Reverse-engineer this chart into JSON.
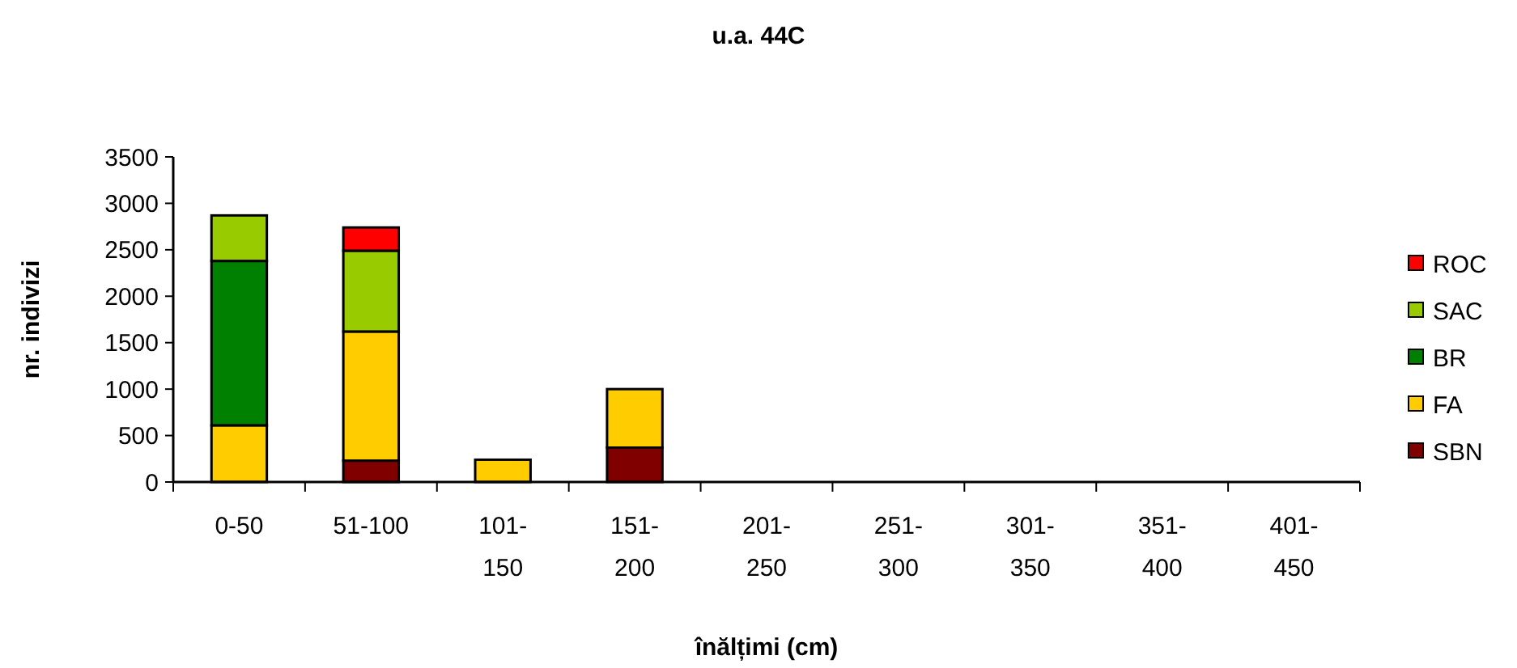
{
  "chart_data": {
    "type": "bar",
    "title": "u.a. 44C",
    "xlabel": "înălțimi (cm)",
    "ylabel": "nr. indivizi",
    "categories": [
      "0-50",
      "51-100",
      "101-150",
      "151-200",
      "201-250",
      "251-300",
      "301-350",
      "351-400",
      "401-450"
    ],
    "stacked": true,
    "ylim": [
      0,
      3500
    ],
    "yticks": [
      0,
      500,
      1000,
      1500,
      2000,
      2500,
      3000,
      3500
    ],
    "grid": false,
    "legend": "right",
    "series": [
      {
        "name": "SBN",
        "color": "#800000",
        "values": [
          0,
          230,
          0,
          370,
          0,
          0,
          0,
          0,
          0
        ]
      },
      {
        "name": "FA",
        "color": "#ffcc00",
        "values": [
          610,
          1390,
          240,
          630,
          0,
          0,
          0,
          0,
          0
        ]
      },
      {
        "name": "BR",
        "color": "#008000",
        "values": [
          1770,
          0,
          0,
          0,
          0,
          0,
          0,
          0,
          0
        ]
      },
      {
        "name": "SAC",
        "color": "#99cc00",
        "values": [
          490,
          870,
          0,
          0,
          0,
          0,
          0,
          0,
          0
        ]
      },
      {
        "name": "ROC",
        "color": "#ff0000",
        "values": [
          0,
          250,
          0,
          0,
          0,
          0,
          0,
          0,
          0
        ]
      }
    ]
  }
}
